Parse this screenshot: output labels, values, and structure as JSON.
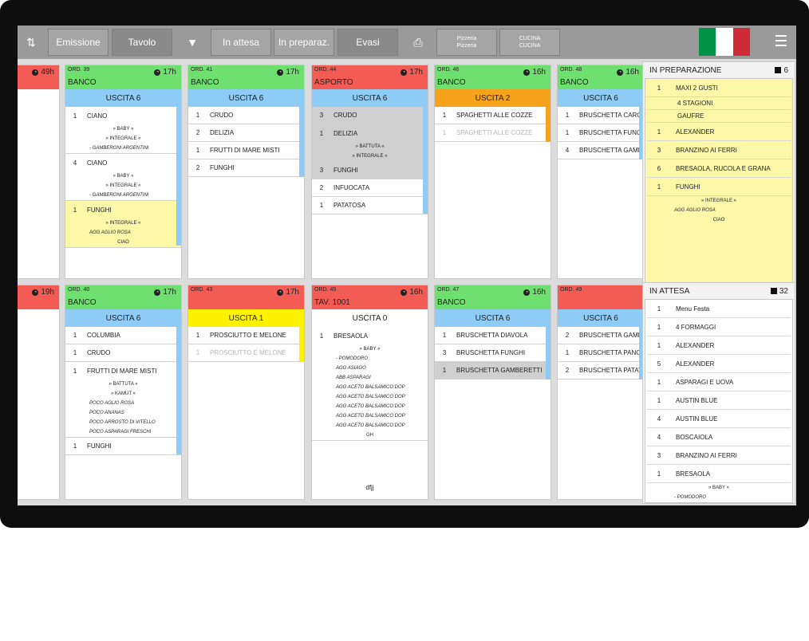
{
  "toolbar": {
    "buttons": [
      {
        "label": "Emissione"
      },
      {
        "label": "Tavolo"
      },
      {
        "label": "In attesa"
      },
      {
        "label": "In preparaz."
      },
      {
        "label": "Evasi"
      }
    ],
    "dept1": [
      "Pizzeria",
      "Pizzeria"
    ],
    "dept2": [
      "CUCINA",
      "CUCINA"
    ],
    "icons": [
      "sort-icon",
      "filter-icon",
      "print-icon",
      "menu-icon"
    ],
    "flag_colors": [
      "#009246",
      "#ffffff",
      "#ce2b37"
    ]
  },
  "orders_top": [
    {
      "ord": "",
      "time": "49h",
      "type": "",
      "color": "#f25c54",
      "uscita": "",
      "uscolor": "#ffffff",
      "items": []
    },
    {
      "ord": "ORD. 39",
      "time": "17h",
      "type": "BANCO",
      "color": "#6fe06f",
      "uscita": "USCITA 6",
      "uscolor": "#8ecbf5",
      "items": [
        {
          "q": "1",
          "n": "CIANO",
          "mods": [
            "» BABY «",
            "» INTEGRALE «"
          ],
          "notes": [
            "- GAMBERONI ARGENTINI"
          ]
        },
        {
          "q": "4",
          "n": "CIANO",
          "mods": [
            "» BABY «",
            "» INTEGRALE «"
          ],
          "notes": [
            "- GAMBERONI ARGENTINI"
          ]
        },
        {
          "q": "1",
          "n": "FUNGHI",
          "mods": [
            "» INTEGRALE «"
          ],
          "notes": [
            "AGG AGLIO ROSA"
          ],
          "extra": "CIAO",
          "bg": "#fdf7a8"
        }
      ]
    },
    {
      "ord": "ORD. 41",
      "time": "17h",
      "type": "BANCO",
      "color": "#6fe06f",
      "uscita": "USCITA 6",
      "uscolor": "#8ecbf5",
      "items": [
        {
          "q": "1",
          "n": "CRUDO"
        },
        {
          "q": "2",
          "n": "DELIZIA"
        },
        {
          "q": "1",
          "n": "FRUTTI DI MARE MISTI"
        },
        {
          "q": "2",
          "n": "FUNGHI"
        }
      ]
    },
    {
      "ord": "ORD. 44",
      "time": "17h",
      "type": "ASPORTO",
      "color": "#f25c54",
      "uscita": "USCITA 6",
      "uscolor": "#8ecbf5",
      "items": [
        {
          "q": "3",
          "n": "CRUDO",
          "bg": "#cfcfcf"
        },
        {
          "q": "1",
          "n": "DELIZIA",
          "mods": [
            "» BATTUTA «",
            "» INTEGRALE «"
          ],
          "bg": "#cfcfcf"
        },
        {
          "q": "3",
          "n": "FUNGHI",
          "bg": "#cfcfcf"
        },
        {
          "q": "2",
          "n": "INFUOCATA"
        },
        {
          "q": "1",
          "n": "PATATOSA"
        }
      ]
    },
    {
      "ord": "ORD. 46",
      "time": "16h",
      "type": "BANCO",
      "color": "#6fe06f",
      "uscita": "USCITA 2",
      "uscolor": "#f7a21b",
      "items": [
        {
          "q": "1",
          "n": "SPAGHETTI ALLE COZZE"
        },
        {
          "q": "1",
          "n": "SPAGHETTI ALLE COZZE",
          "faded": true
        }
      ]
    },
    {
      "ord": "ORD. 48",
      "time": "16h",
      "type": "BANCO",
      "color": "#6fe06f",
      "uscita": "USCITA 6",
      "uscolor": "#8ecbf5",
      "items": [
        {
          "q": "1",
          "n": "BRUSCHETTA CARCI"
        },
        {
          "q": "1",
          "n": "BRUSCHETTA FUNGI"
        },
        {
          "q": "4",
          "n": "BRUSCHETTA GAMB"
        }
      ]
    }
  ],
  "orders_bottom": [
    {
      "ord": "",
      "time": "19h",
      "type": "",
      "color": "#f25c54",
      "uscita": "",
      "uscolor": "#ffffff",
      "items": []
    },
    {
      "ord": "ORD. 40",
      "time": "17h",
      "type": "BANCO",
      "color": "#6fe06f",
      "uscita": "USCITA 6",
      "uscolor": "#8ecbf5",
      "items": [
        {
          "q": "1",
          "n": "COLUMBIA"
        },
        {
          "q": "1",
          "n": "CRUDO"
        },
        {
          "q": "1",
          "n": "FRUTTI DI MARE MISTI",
          "mods": [
            "» BATTUTA «",
            "» KAMUT «"
          ],
          "notes": [
            "POCO AGLIO ROSA",
            "POCO ANANAS",
            "POCO ARROSTO DI VITELLO",
            "POCO ASPARAGI FRESCHI"
          ]
        },
        {
          "q": "1",
          "n": "FUNGHI"
        }
      ]
    },
    {
      "ord": "ORD. 43",
      "time": "17h",
      "type": "",
      "color": "#f25c54",
      "uscita": "USCITA 1",
      "uscolor": "#fff200",
      "items": [
        {
          "q": "1",
          "n": "PROSCIUTTO E MELONE"
        },
        {
          "q": "1",
          "n": "PROSCIUTTO E MELONE",
          "faded": true
        }
      ]
    },
    {
      "ord": "ORD. 45",
      "time": "16h",
      "type": "TAV. 1001",
      "color": "#f25c54",
      "uscita": "USCITA 0",
      "uscolor": "#ffffff",
      "items": [
        {
          "q": "1",
          "n": "BRESAOLA",
          "mods": [
            "» BABY «"
          ],
          "notes": [
            "- POMODORO",
            "AGG ASIAGO",
            "ABB ASPARAGI",
            "AGG ACETO BALSAMICO DOP",
            "AGG ACETO BALSAMICO DOP",
            "AGG ACETO BALSAMICO DOP",
            "AGG ACETO BALSAMICO DOP",
            "AGG ACETO BALSAMICO DOP"
          ],
          "extra": "GH"
        }
      ],
      "footer": "dfjj"
    },
    {
      "ord": "ORD. 47",
      "time": "16h",
      "type": "BANCO",
      "color": "#6fe06f",
      "uscita": "USCITA 6",
      "uscolor": "#8ecbf5",
      "items": [
        {
          "q": "1",
          "n": "BRUSCHETTA DIAVOLA"
        },
        {
          "q": "3",
          "n": "BRUSCHETTA FUNGHI"
        },
        {
          "q": "1",
          "n": "BRUSCHETTA GAMBERETTI",
          "bg": "#cfcfcf"
        }
      ]
    },
    {
      "ord": "ORD. 49",
      "time": "",
      "type": "",
      "color": "#f25c54",
      "uscita": "USCITA 6",
      "uscolor": "#8ecbf5",
      "items": [
        {
          "q": "2",
          "n": "BRUSCHETTA GAMB"
        },
        {
          "q": "1",
          "n": "BRUSCHETTA PANC"
        },
        {
          "q": "2",
          "n": "BRUSCHETTA PATAT"
        }
      ]
    }
  ],
  "in_preparazione": {
    "title": "IN PREPARAZIONE",
    "count": "6",
    "items": [
      {
        "q": "1",
        "n": "MAXI 2 GUSTI",
        "subs": [
          "4 STAGIONI",
          "GAUFRE"
        ]
      },
      {
        "q": "1",
        "n": "ALEXANDER"
      },
      {
        "q": "3",
        "n": "BRANZINO AI FERRI"
      },
      {
        "q": "6",
        "n": "BRESAOLA, RUCOLA E GRANA"
      },
      {
        "q": "1",
        "n": "FUNGHI",
        "mods": [
          "» INTEGRALE «"
        ],
        "notes": [
          "AGG AGLIO ROSA"
        ],
        "extra": "CIAO"
      }
    ]
  },
  "in_attesa": {
    "title": "IN ATTESA",
    "count": "32",
    "items": [
      {
        "q": "1",
        "n": "Menu Festa"
      },
      {
        "q": "1",
        "n": "4 FORMAGGI"
      },
      {
        "q": "1",
        "n": "ALEXANDER"
      },
      {
        "q": "5",
        "n": "ALEXANDER"
      },
      {
        "q": "1",
        "n": "ASPARAGI E UOVA"
      },
      {
        "q": "1",
        "n": "AUSTIN BLUE"
      },
      {
        "q": "4",
        "n": "AUSTIN BLUE"
      },
      {
        "q": "4",
        "n": "BOSCAIOLA"
      },
      {
        "q": "3",
        "n": "BRANZINO AI FERRI"
      },
      {
        "q": "1",
        "n": "BRESAOLA",
        "mods": [
          "» BABY «"
        ],
        "notes": [
          "- POMODORO"
        ]
      }
    ]
  }
}
